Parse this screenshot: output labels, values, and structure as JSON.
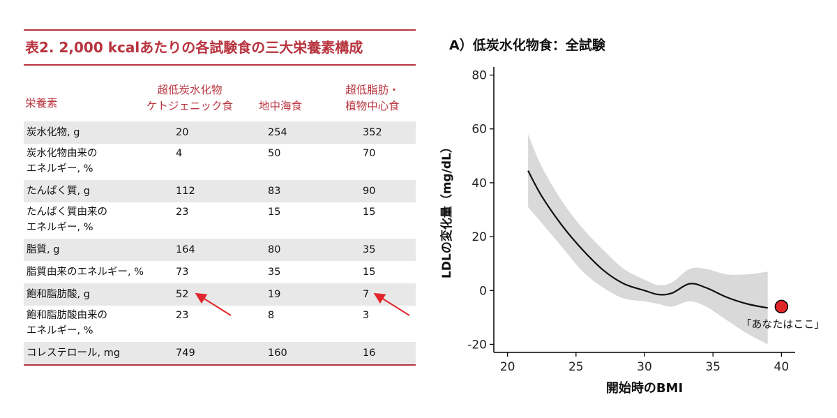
{
  "table": {
    "title": "表2. 2,000 kcalあたりの各試験食の三大栄養素構成",
    "headers": {
      "nutrient": "栄養素",
      "keto": "超低炭水化物\nケトジェニック食",
      "mediterranean": "地中海食",
      "lowfat": "超低脂肪・\n植物中心食"
    },
    "rows": [
      {
        "label": "炭水化物, g",
        "keto": "20",
        "mediterranean": "254",
        "lowfat": "352",
        "shaded": true
      },
      {
        "label": "炭水化物由来の\nエネルギー, %",
        "keto": "4",
        "mediterranean": "50",
        "lowfat": "70",
        "shaded": false
      },
      {
        "label": "たんぱく質, g",
        "keto": "112",
        "mediterranean": "83",
        "lowfat": "90",
        "shaded": true
      },
      {
        "label": "たんぱく質由来の\nエネルギー, %",
        "keto": "23",
        "mediterranean": "15",
        "lowfat": "15",
        "shaded": false
      },
      {
        "label": "脂質, g",
        "keto": "164",
        "mediterranean": "80",
        "lowfat": "35",
        "shaded": true
      },
      {
        "label": "脂質由来のエネルギー, %",
        "keto": "73",
        "mediterranean": "35",
        "lowfat": "15",
        "shaded": false
      },
      {
        "label": "飽和脂肪酸, g",
        "keto": "52",
        "mediterranean": "19",
        "lowfat": "7",
        "shaded": true
      },
      {
        "label": "飽和脂肪酸由来の\nエネルギー, %",
        "keto": "23",
        "mediterranean": "8",
        "lowfat": "3",
        "shaded": false
      },
      {
        "label": "コレステロール, mg",
        "keto": "749",
        "mediterranean": "160",
        "lowfat": "16",
        "shaded": true
      }
    ],
    "arrow_color": "#e0262b",
    "accent_color": "#b8343f"
  },
  "chart_data": {
    "type": "line",
    "title": "A）低炭水化物食：全試験",
    "xlabel": "開始時のBMI",
    "ylabel": "LDLの変化量（mg/dL）",
    "xlim": [
      19,
      41
    ],
    "ylim": [
      -23,
      83
    ],
    "xticks": [
      20,
      25,
      30,
      35,
      40
    ],
    "yticks": [
      80,
      60,
      40,
      20,
      0,
      -20
    ],
    "grid": false,
    "series": [
      {
        "values": [
          {
            "x": 21.5,
            "y": 44.5,
            "lo": 31,
            "hi": 58
          },
          {
            "x": 22.5,
            "y": 35,
            "lo": 25,
            "hi": 46
          },
          {
            "x": 24,
            "y": 24,
            "lo": 16,
            "hi": 33
          },
          {
            "x": 25.5,
            "y": 15,
            "lo": 7,
            "hi": 23
          },
          {
            "x": 27,
            "y": 7.5,
            "lo": 1,
            "hi": 15
          },
          {
            "x": 28.5,
            "y": 2.5,
            "lo": -3,
            "hi": 8
          },
          {
            "x": 30,
            "y": 0,
            "lo": -4,
            "hi": 4
          },
          {
            "x": 31,
            "y": -1.5,
            "lo": -5,
            "hi": 2
          },
          {
            "x": 32,
            "y": -1,
            "lo": -6,
            "hi": 3
          },
          {
            "x": 33.3,
            "y": 2.5,
            "lo": -4,
            "hi": 8
          },
          {
            "x": 34.5,
            "y": 1,
            "lo": -6,
            "hi": 8
          },
          {
            "x": 36,
            "y": -2.5,
            "lo": -11,
            "hi": 6
          },
          {
            "x": 37.5,
            "y": -5,
            "lo": -16,
            "hi": 6
          },
          {
            "x": 39,
            "y": -6.5,
            "lo": -20,
            "hi": 7
          }
        ]
      }
    ],
    "marker": {
      "x": 40,
      "y": -6,
      "label": "「あなたはここ」",
      "color": "#e0262b"
    },
    "band_color": "#d9d9d9",
    "line_color": "#111111"
  }
}
